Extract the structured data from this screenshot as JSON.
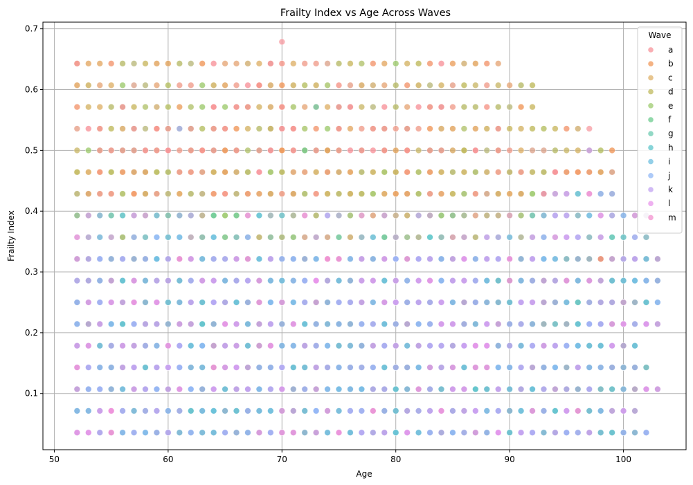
{
  "chart_data": {
    "type": "scatter",
    "title": "Frailty Index vs Age Across Waves",
    "xlabel": "Age",
    "ylabel": "Frailty Index",
    "xlim": [
      49,
      105.5
    ],
    "ylim": [
      0.0075,
      0.711
    ],
    "xticks": [
      50,
      60,
      70,
      80,
      90,
      100
    ],
    "yticks": [
      0.1,
      0.2,
      0.3,
      0.4,
      0.5,
      0.6,
      0.7
    ],
    "grid": true,
    "legend": {
      "title": "Wave",
      "placement": "top-right",
      "entries": [
        "a",
        "b",
        "c",
        "d",
        "e",
        "f",
        "g",
        "h",
        "i",
        "j",
        "k",
        "l",
        "m"
      ]
    },
    "colors": [
      "#f7939a",
      "#f0985a",
      "#dfb16a",
      "#bfb95d",
      "#9ecb6f",
      "#6ccb8e",
      "#6dcbb2",
      "#5fc6cb",
      "#6fbfe0",
      "#92b8f5",
      "#c2a3f1",
      "#e895eb",
      "#f392cf"
    ],
    "frailty_levels": [
      0.0357,
      0.0714,
      0.1071,
      0.1429,
      0.1786,
      0.2143,
      0.25,
      0.2857,
      0.3214,
      0.3571,
      0.3929,
      0.4286,
      0.4643,
      0.5,
      0.5357,
      0.5714,
      0.6071,
      0.6429,
      0.6786
    ],
    "age_range": [
      52,
      103
    ],
    "bottom_band_max_age": [
      102,
      101,
      103,
      102,
      101,
      103,
      103,
      103,
      103,
      102,
      102,
      99,
      99,
      99,
      96,
      92,
      92,
      89
    ],
    "outliers": [
      {
        "x": 52,
        "y": 0.6429,
        "series": "a"
      },
      {
        "x": 69,
        "y": 0.6429,
        "series": "a"
      },
      {
        "x": 70,
        "y": 0.6786,
        "series": "a"
      },
      {
        "x": 68,
        "y": 0.6071,
        "series": "a"
      },
      {
        "x": 56,
        "y": 0.5714,
        "series": "a"
      },
      {
        "x": 64,
        "y": 0.5714,
        "series": "a"
      },
      {
        "x": 66,
        "y": 0.5714,
        "series": "a"
      },
      {
        "x": 67,
        "y": 0.5714,
        "series": "a"
      },
      {
        "x": 70,
        "y": 0.5714,
        "series": "a"
      },
      {
        "x": 73,
        "y": 0.5714,
        "series": "g"
      },
      {
        "x": 75,
        "y": 0.5714,
        "series": "a"
      },
      {
        "x": 76,
        "y": 0.5714,
        "series": "a"
      },
      {
        "x": 83,
        "y": 0.5714,
        "series": "a"
      },
      {
        "x": 84,
        "y": 0.5714,
        "series": "a"
      },
      {
        "x": 54,
        "y": 0.5357,
        "series": "a"
      },
      {
        "x": 57,
        "y": 0.5357,
        "series": "a"
      },
      {
        "x": 59,
        "y": 0.5357,
        "series": "a"
      },
      {
        "x": 60,
        "y": 0.5357,
        "series": "a"
      },
      {
        "x": 61,
        "y": 0.5357,
        "series": "j"
      },
      {
        "x": 62,
        "y": 0.5357,
        "series": "a"
      },
      {
        "x": 64,
        "y": 0.5357,
        "series": "a"
      },
      {
        "x": 65,
        "y": 0.5357,
        "series": "a"
      },
      {
        "x": 69,
        "y": 0.5357,
        "series": "d"
      },
      {
        "x": 70,
        "y": 0.5357,
        "series": "a"
      },
      {
        "x": 71,
        "y": 0.5357,
        "series": "a"
      },
      {
        "x": 75,
        "y": 0.5357,
        "series": "a"
      },
      {
        "x": 78,
        "y": 0.5357,
        "series": "a"
      },
      {
        "x": 79,
        "y": 0.5357,
        "series": "a"
      },
      {
        "x": 81,
        "y": 0.5357,
        "series": "a"
      },
      {
        "x": 89,
        "y": 0.5357,
        "series": "a"
      },
      {
        "x": 97,
        "y": 0.5357,
        "series": "a"
      },
      {
        "x": 97,
        "y": 0.5,
        "series": "k"
      },
      {
        "x": 94,
        "y": 0.4643,
        "series": "a"
      },
      {
        "x": 93,
        "y": 0.4286,
        "series": "a"
      },
      {
        "x": 98,
        "y": 0.3214,
        "series": "b"
      },
      {
        "x": 99,
        "y": 0.2857,
        "series": "h"
      }
    ]
  }
}
